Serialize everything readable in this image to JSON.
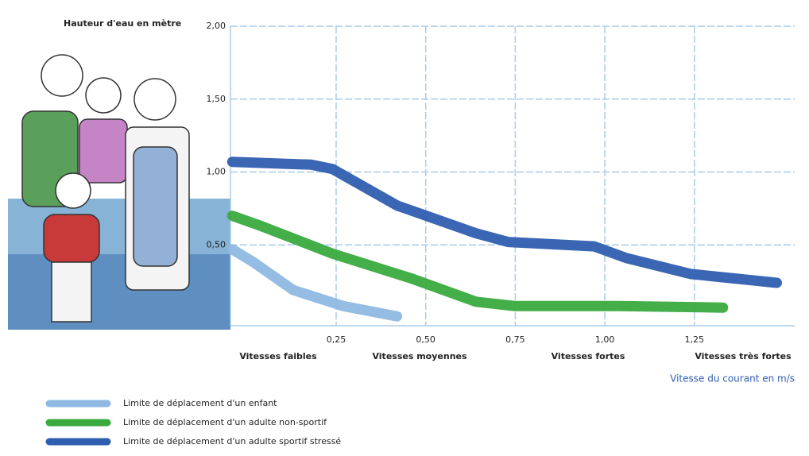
{
  "chart_data": {
    "type": "line",
    "y_axis_label": "Hauteur d'eau en mètre",
    "x_axis_label": "Vitesse du courant en m/s",
    "zones": [
      "Vitesses faibles",
      "Vitesses moyennes",
      "Vitesses fortes",
      "Vitesses très fortes"
    ],
    "xlim": [
      -0.045,
      1.53
    ],
    "ylim": [
      0,
      2.0
    ],
    "xticks": [
      {
        "value": 0.25,
        "label": "0,25"
      },
      {
        "value": 0.5,
        "label": "0,50"
      },
      {
        "value": 0.75,
        "label": "0,75"
      },
      {
        "value": 1.0,
        "label": "1,00"
      },
      {
        "value": 1.25,
        "label": "1,25"
      }
    ],
    "yticks": [
      {
        "value": 0.5,
        "label": "0,50"
      },
      {
        "value": 1.0,
        "label": "1,00"
      },
      {
        "value": 1.5,
        "label": "1,50"
      },
      {
        "value": 2.0,
        "label": "2,00"
      }
    ],
    "grid": true,
    "series": [
      {
        "name": "Limite de déplacement d'un enfant",
        "color": "#8fb8e2",
        "x": [
          -0.04,
          0.02,
          0.13,
          0.27,
          0.42
        ],
        "values": [
          0.47,
          0.38,
          0.19,
          0.08,
          0.01
        ]
      },
      {
        "name": "Limite de déplacement d'un adulte non-sportif",
        "color": "#3aaa3f",
        "x": [
          -0.04,
          0.04,
          0.24,
          0.46,
          0.64,
          0.75,
          1.04,
          1.33
        ],
        "values": [
          0.7,
          0.63,
          0.44,
          0.27,
          0.11,
          0.08,
          0.08,
          0.07
        ]
      },
      {
        "name": "Limite de déplacement d'un adulte sportif stressé",
        "color": "#2f5eb0",
        "x": [
          -0.04,
          0.18,
          0.24,
          0.42,
          0.64,
          0.73,
          0.97,
          1.06,
          1.24,
          1.48
        ],
        "values": [
          1.07,
          1.05,
          1.02,
          0.77,
          0.58,
          0.52,
          0.49,
          0.41,
          0.3,
          0.24
        ]
      }
    ]
  }
}
